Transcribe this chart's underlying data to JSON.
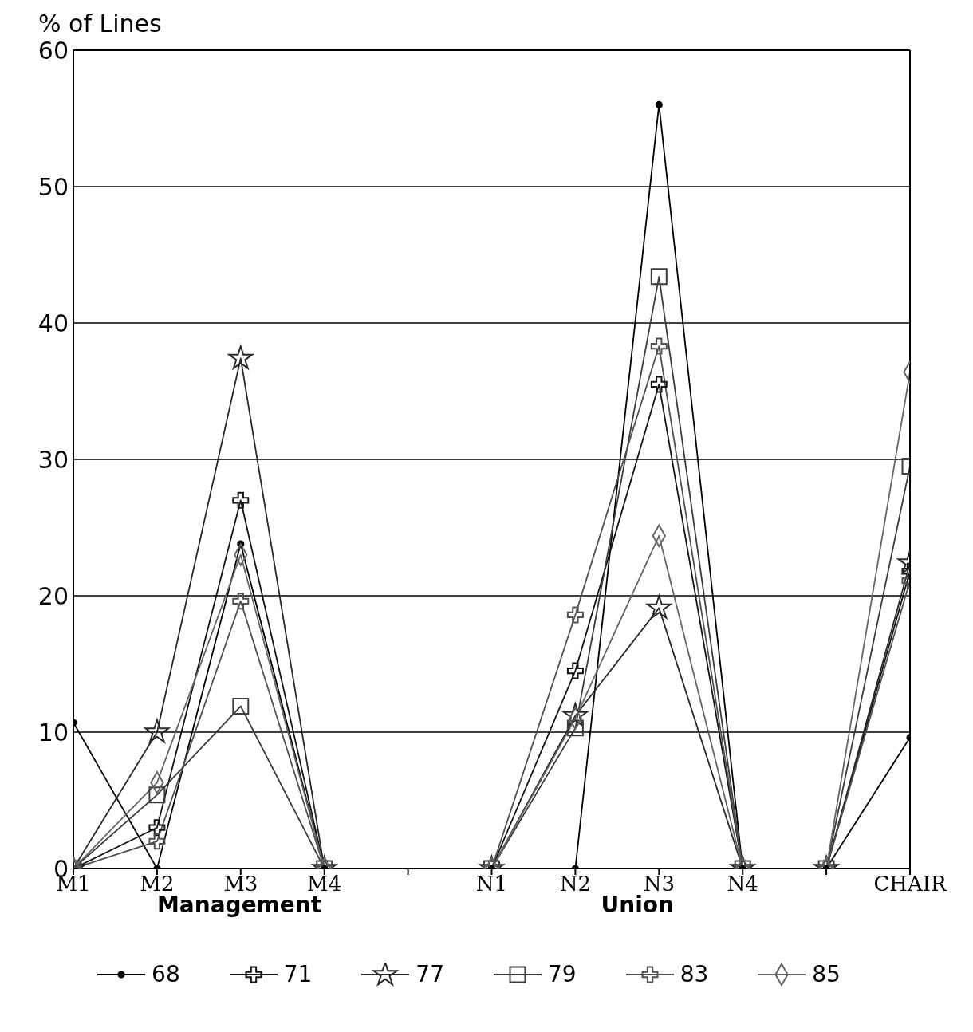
{
  "chart_data": {
    "type": "line",
    "ylabel": "% of Lines",
    "categories": [
      "M1",
      "M2",
      "M3",
      "M4",
      null,
      "N1",
      "N2",
      "N3",
      "N4",
      null,
      "CHAIR"
    ],
    "series": [
      {
        "name": "68",
        "color": "#000000",
        "marker": "circle",
        "values": [
          10.7,
          0,
          23.8,
          0,
          null,
          0,
          0,
          56,
          0,
          0,
          9.6
        ]
      },
      {
        "name": "71",
        "color": "#141414",
        "marker": "cross",
        "values": [
          0,
          3,
          27,
          0,
          null,
          0,
          14.5,
          35.5,
          0,
          0,
          21.8
        ]
      },
      {
        "name": "77",
        "color": "#282828",
        "marker": "star",
        "values": [
          0,
          10,
          37.4,
          0,
          null,
          0,
          11.2,
          19.1,
          0,
          0,
          22.4
        ]
      },
      {
        "name": "79",
        "color": "#3c3c3c",
        "marker": "square",
        "values": [
          0,
          5.4,
          11.9,
          0,
          null,
          0,
          10.3,
          43.4,
          0,
          0,
          29.5
        ]
      },
      {
        "name": "83",
        "color": "#505050",
        "marker": "cross",
        "values": [
          0,
          2,
          19.6,
          0,
          null,
          0,
          18.6,
          38.3,
          0,
          0,
          21.1
        ]
      },
      {
        "name": "85",
        "color": "#646464",
        "marker": "diamond",
        "values": [
          0,
          6.3,
          23,
          0,
          null,
          0,
          11,
          24.4,
          0,
          0,
          36.4
        ]
      }
    ],
    "ylim": [
      0,
      60
    ],
    "yticks": [
      0,
      10,
      20,
      30,
      40,
      50,
      60
    ],
    "grid": "y",
    "legend": "bottom",
    "line_style": "solid",
    "annotations": [
      "Management",
      "Union"
    ]
  }
}
